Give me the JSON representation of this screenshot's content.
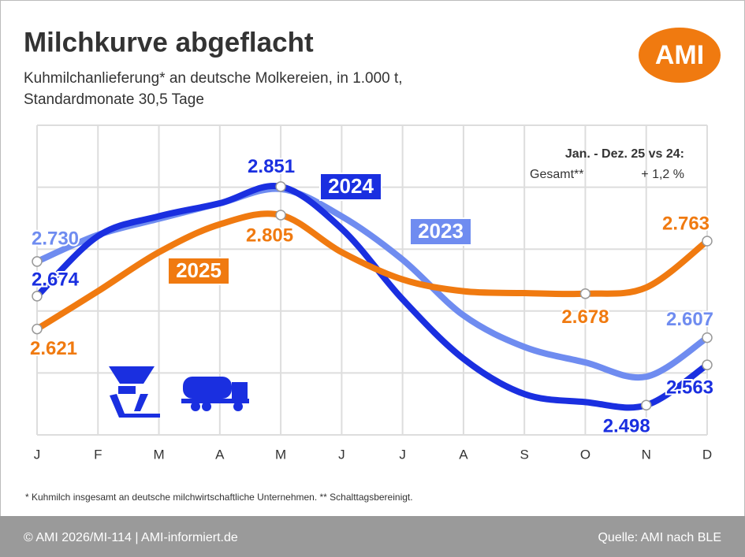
{
  "chart_data": {
    "type": "line",
    "title": "Milchkurve abgeflacht",
    "subtitle": [
      "Kuhmilchanlieferung* an deutsche Molkereien, in 1.000 t,",
      "Standardmonate 30,5 Tage"
    ],
    "logo": "AMI",
    "categories": [
      "J",
      "F",
      "M",
      "A",
      "M",
      "J",
      "J",
      "A",
      "S",
      "O",
      "N",
      "D"
    ],
    "series": [
      {
        "name": "2023",
        "color": "#6f8cf0",
        "values": [
          2730,
          2773,
          2799,
          2824,
          2847,
          2803,
          2733,
          2643,
          2592,
          2567,
          2544,
          2607
        ],
        "value_labels": [
          "2.730",
          null,
          null,
          null,
          null,
          null,
          null,
          null,
          null,
          null,
          null,
          "2.607"
        ]
      },
      {
        "name": "2024",
        "color": "#1a2fe0",
        "values": [
          2674,
          2771,
          2803,
          2824,
          2851,
          2783,
          2669,
          2573,
          2516,
          2503,
          2498,
          2563
        ],
        "value_labels": [
          "2.674",
          null,
          null,
          null,
          "2.851",
          null,
          null,
          null,
          null,
          null,
          "2.498",
          "2.563"
        ]
      },
      {
        "name": "2025",
        "color": "#f07a10",
        "values": [
          2621,
          2682,
          2745,
          2790,
          2805,
          2745,
          2701,
          2682,
          2679,
          2678,
          2688,
          2763
        ],
        "value_labels": [
          "2.621",
          null,
          null,
          null,
          "2.805",
          null,
          null,
          null,
          null,
          "2.678",
          null,
          "2.763"
        ]
      }
    ],
    "ylim": [
      2450,
      2950
    ],
    "yticks": [
      2450,
      2550,
      2650,
      2750,
      2850,
      2950
    ],
    "grid": true,
    "annotation": {
      "title": "Jan. - Dez. 25 vs 24:",
      "label": "Gesamt**",
      "value": "+ 1,2 %"
    },
    "footnote": "* Kuhmilch insgesamt an deutsche milchwirtschaftliche Unternehmen. ** Schalttagsbereinigt.",
    "footer": {
      "left": "© AMI 2026/MI-114 | AMI-informiert.de",
      "right": "Quelle: AMI nach BLE"
    }
  }
}
